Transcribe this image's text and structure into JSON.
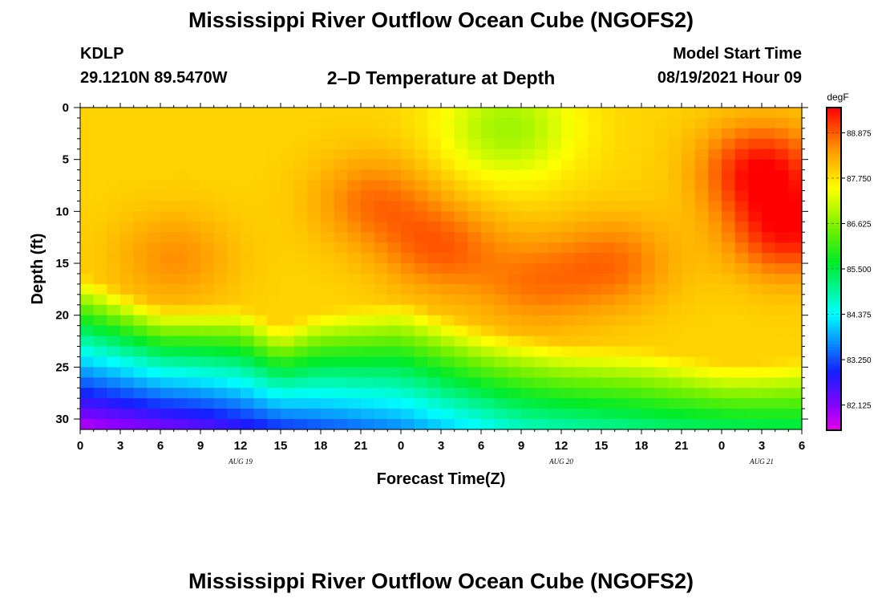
{
  "header": {
    "title": "Mississippi River Outflow Ocean Cube (NGOFS2)",
    "station": "KDLP",
    "coordinates": "29.1210N  89.5470W",
    "subtitle": "2–D Temperature at Depth",
    "model_start_label": "Model Start Time",
    "model_start_value": "08/19/2021 Hour 09"
  },
  "footer": {
    "title": "Mississippi River Outflow Ocean Cube (NGOFS2)"
  },
  "chart_data": {
    "type": "heatmap",
    "title": "2–D Temperature at Depth",
    "xlabel": "Forecast Time(Z)",
    "ylabel": "Depth (ft)",
    "x_ticks": [
      "0",
      "3",
      "6",
      "9",
      "12",
      "15",
      "18",
      "21",
      "0",
      "3",
      "6",
      "9",
      "12",
      "15",
      "18",
      "21",
      "0",
      "3",
      "6"
    ],
    "x_range_hours": [
      0,
      54
    ],
    "date_labels": [
      {
        "text": "AUG 19",
        "hour": 12
      },
      {
        "text": "AUG 20",
        "hour": 36
      },
      {
        "text": "AUG 21",
        "hour": 51
      }
    ],
    "y_ticks": [
      "0",
      "5",
      "10",
      "15",
      "20",
      "25",
      "30"
    ],
    "ylim": [
      0,
      31
    ],
    "y_inverted": true,
    "colorbar": {
      "unit": "degF",
      "labels": [
        "88.875",
        "87.750",
        "86.625",
        "85.500",
        "84.375",
        "83.250",
        "82.125"
      ],
      "min": 81.5,
      "max": 89.5
    },
    "hot_spots": [
      {
        "hour": 22,
        "depth": 9,
        "temp": 88.7
      },
      {
        "hour": 27,
        "depth": 13.5,
        "temp": 88.8
      },
      {
        "hour": 34,
        "depth": 17,
        "temp": 88.6
      },
      {
        "hour": 40,
        "depth": 15,
        "temp": 88.7
      },
      {
        "hour": 51,
        "depth": 6,
        "temp": 89.4
      },
      {
        "hour": 53,
        "depth": 12,
        "temp": 89.3
      },
      {
        "hour": 7,
        "depth": 14.5,
        "temp": 88.5
      }
    ],
    "cool_spots": [
      {
        "hour": 32,
        "depth": 2,
        "temp": 86.8
      },
      {
        "hour": 9,
        "depth": 1,
        "temp": 87.9
      }
    ],
    "thermocline_depth_ft": [
      {
        "hour": 0,
        "depth": 16
      },
      {
        "hour": 6,
        "depth": 19
      },
      {
        "hour": 12,
        "depth": 19
      },
      {
        "hour": 15,
        "depth": 21
      },
      {
        "hour": 18,
        "depth": 19.5
      },
      {
        "hour": 24,
        "depth": 18.5
      },
      {
        "hour": 30,
        "depth": 21
      },
      {
        "hour": 36,
        "depth": 22.5
      },
      {
        "hour": 42,
        "depth": 23
      },
      {
        "hour": 48,
        "depth": 24.5
      },
      {
        "hour": 51,
        "depth": 24.5
      },
      {
        "hour": 54,
        "depth": 24
      }
    ],
    "bottom_temp_degF": [
      {
        "hour": 0,
        "temp": 81.7
      },
      {
        "hour": 9,
        "temp": 82.3
      },
      {
        "hour": 15,
        "temp": 83.0
      },
      {
        "hour": 24,
        "temp": 83.6
      },
      {
        "hour": 33,
        "temp": 84.7
      },
      {
        "hour": 45,
        "temp": 85.2
      },
      {
        "hour": 54,
        "temp": 85.4
      }
    ]
  }
}
